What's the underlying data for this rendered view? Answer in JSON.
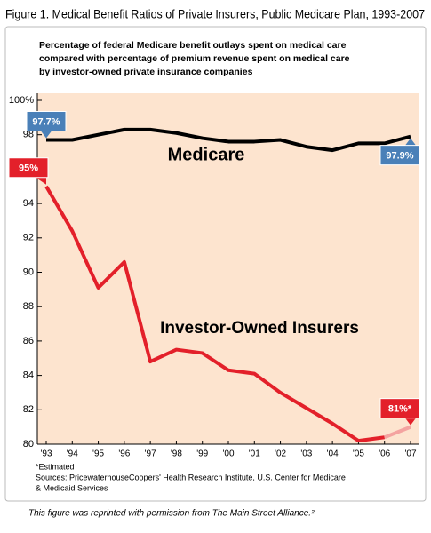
{
  "chart_data": {
    "type": "line",
    "title": "Figure 1. Medical Benefit Ratios of Private Insurers, Public Medicare Plan, 1993-2007",
    "subtitle": [
      "Percentage of federal Medicare benefit outlays spent on medical care",
      "compared with percentage of premium revenue spent on medical care",
      "by investor-owned private insurance companies"
    ],
    "categories": [
      "'93",
      "'94",
      "'95",
      "'96",
      "'97",
      "'98",
      "'99",
      "'00",
      "'01",
      "'02",
      "'03",
      "'04",
      "'05",
      "'06",
      "'07"
    ],
    "series": [
      {
        "name": "Medicare",
        "color": "#000000",
        "label_color": "#4a80b8",
        "values": [
          97.7,
          97.7,
          98.0,
          98.3,
          98.3,
          98.1,
          97.8,
          97.6,
          97.6,
          97.7,
          97.3,
          97.1,
          97.5,
          97.5,
          97.9
        ],
        "value_labels": [
          "97.7%",
          null,
          null,
          null,
          null,
          null,
          null,
          null,
          null,
          null,
          null,
          null,
          null,
          null,
          "97.9%"
        ]
      },
      {
        "name": "Investor-Owned Insurers",
        "color": "#e3202a",
        "label_color": "#e3202a",
        "estimated_color": "#f4a3a0",
        "estimated_start": "'06",
        "values": [
          95.0,
          92.4,
          89.1,
          90.6,
          84.8,
          85.5,
          85.3,
          84.3,
          84.1,
          83.0,
          82.1,
          81.2,
          80.2,
          80.4,
          81.0
        ],
        "value_labels": [
          "95%",
          null,
          null,
          null,
          null,
          null,
          null,
          null,
          null,
          null,
          null,
          null,
          null,
          null,
          "81%*"
        ]
      }
    ],
    "ylim": [
      80,
      100
    ],
    "yticks": [
      80,
      82,
      84,
      86,
      88,
      90,
      92,
      94,
      96,
      98,
      {
        "value": 100,
        "label": "100%"
      }
    ],
    "background": "#fde4cf",
    "notes": [
      "*Estimated",
      "Sources: PricewaterhouseCoopers' Health Research Institute, U.S. Center for Medicare",
      "& Medicaid Services"
    ],
    "credit": "This figure was reprinted with permission from The Main Street Alliance.²"
  }
}
